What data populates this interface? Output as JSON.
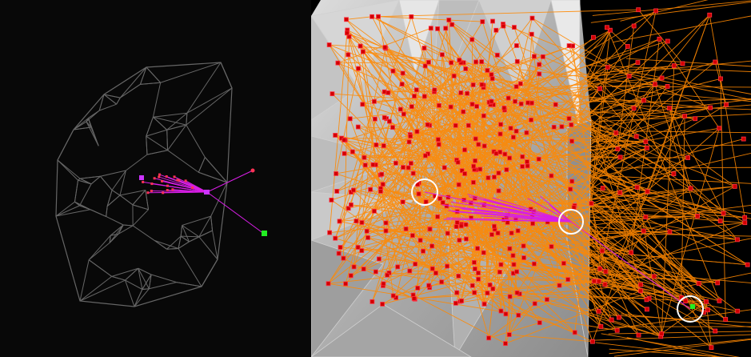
{
  "left_view": {
    "wireframe_color": "#666666",
    "ray_color": "#d81ee6",
    "point_color": "#ff3355",
    "source_color": "#cc33ff",
    "target_color": "#22ee22"
  },
  "right_view": {
    "background_mesh_color": "#b8b8b8",
    "path_color": "#ff8800",
    "node_fill": "#d10000",
    "node_stroke": "#ff3344",
    "ray_color": "#d81ee6",
    "marker_color": "#ffffff",
    "target_color": "#22ee22"
  }
}
